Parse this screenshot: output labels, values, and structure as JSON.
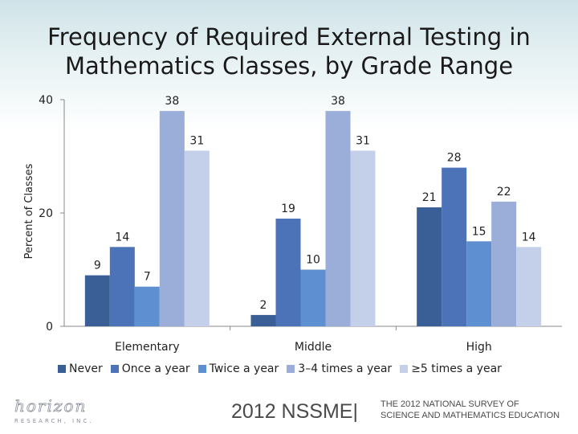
{
  "title_line1": "Frequency of Required External Testing in",
  "title_line2": "Mathematics Classes, by Grade Range",
  "chart_data": {
    "type": "bar",
    "title": "Frequency of Required External Testing in Mathematics Classes, by Grade Range",
    "ylabel": "Percent of Classes",
    "xlabel": "",
    "ylim": [
      0,
      40
    ],
    "yticks": [
      0,
      20,
      40
    ],
    "grid": false,
    "legend_position": "bottom",
    "categories": [
      "Elementary",
      "Middle",
      "High"
    ],
    "series": [
      {
        "name": "Never",
        "color": "#3a5f96",
        "values": [
          9,
          2,
          21
        ]
      },
      {
        "name": "Once a year",
        "color": "#4c72b8",
        "values": [
          14,
          19,
          28
        ]
      },
      {
        "name": "Twice a year",
        "color": "#5e8fd0",
        "values": [
          7,
          10,
          15
        ]
      },
      {
        "name": "3–4 times a year",
        "color": "#9aaed9",
        "values": [
          38,
          38,
          22
        ]
      },
      {
        "name": "≥5 times a year",
        "color": "#c4d0ea",
        "values": [
          31,
          31,
          14
        ]
      }
    ]
  },
  "footer": {
    "logo_text": "horizon",
    "logo_subtext": "RESEARCH, INC.",
    "brand": "2012 NSSME|",
    "sub_line1": "THE 2012 NATIONAL SURVEY OF",
    "sub_line2": "SCIENCE AND MATHEMATICS EDUCATION"
  }
}
